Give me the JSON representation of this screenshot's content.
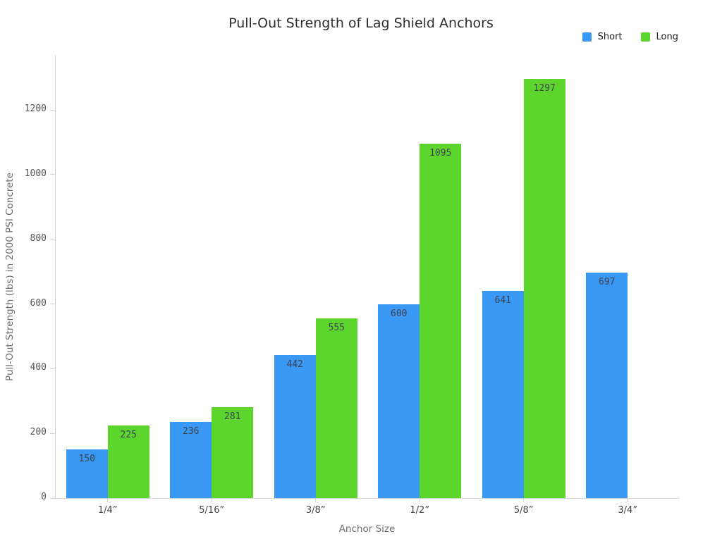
{
  "chart_data": {
    "type": "bar",
    "title": "Pull-Out Strength of Lag Shield Anchors",
    "xlabel": "Anchor Size",
    "ylabel": "Pull-Out Strength (lbs) in 2000 PSI Concrete",
    "categories": [
      "1/4”",
      "5/16”",
      "3/8”",
      "1/2”",
      "5/8”",
      "3/4”"
    ],
    "series": [
      {
        "name": "Short",
        "color": "#3898f3",
        "values": [
          150,
          236,
          442,
          600,
          641,
          697
        ]
      },
      {
        "name": "Long",
        "color": "#5cd62c",
        "values": [
          225,
          281,
          555,
          1095,
          1297,
          null
        ]
      }
    ],
    "yticks": [
      0,
      200,
      400,
      600,
      800,
      1000,
      1200
    ],
    "ylim": [
      0,
      1370
    ],
    "grid": false,
    "legend_position": "top-right",
    "bar_labels_inside_top": true,
    "axis_color": "#d4d4d4",
    "background": "#ffffff"
  }
}
